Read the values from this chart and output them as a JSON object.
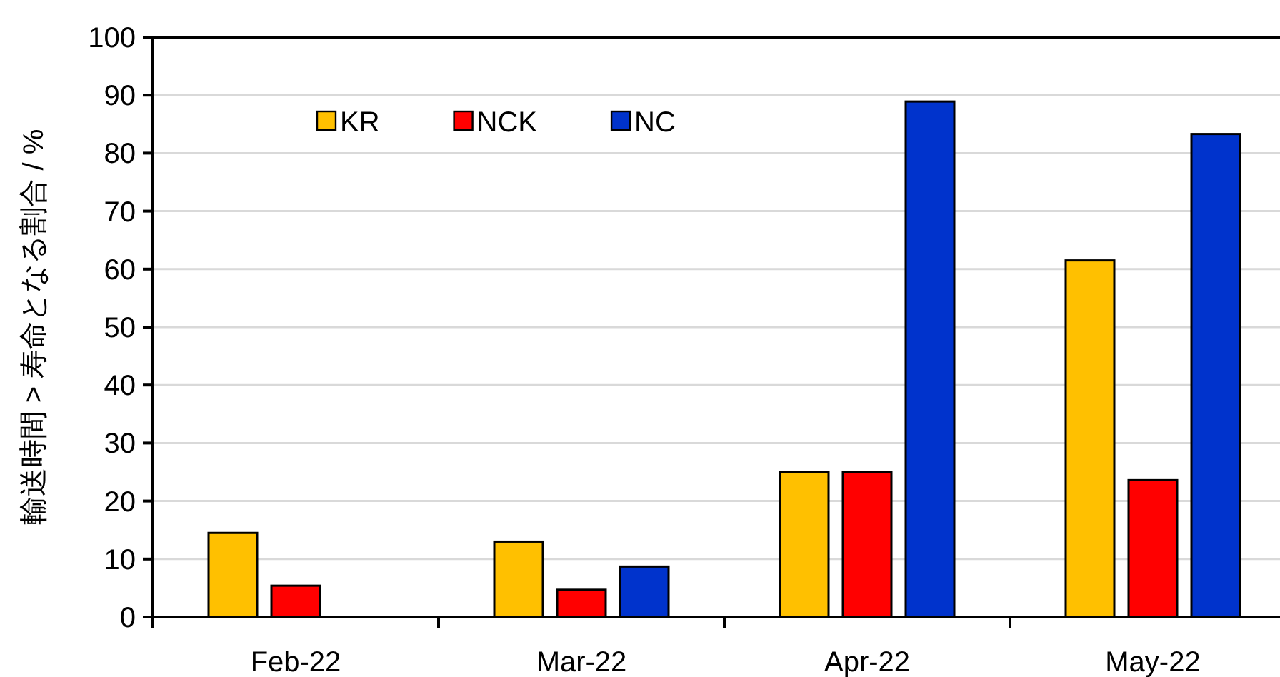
{
  "chart_data": {
    "type": "bar",
    "ylabel": "輸送時間 > 寿命となる割合 / %",
    "categories": [
      "Feb-22",
      "Mar-22",
      "Apr-22",
      "May-22"
    ],
    "series": [
      {
        "name": "KR",
        "color": "#ffc000",
        "values": [
          14.5,
          13.0,
          25.0,
          61.5
        ]
      },
      {
        "name": "NCK",
        "color": "#ff0000",
        "values": [
          5.4,
          4.7,
          25.0,
          23.6
        ]
      },
      {
        "name": "NC",
        "color": "#0033cc",
        "values": [
          null,
          8.7,
          88.9,
          83.3
        ]
      }
    ],
    "ylim": [
      0,
      100
    ],
    "yticks": [
      0,
      10,
      20,
      30,
      40,
      50,
      60,
      70,
      80,
      90,
      100
    ],
    "grid": "y",
    "legend": "top left"
  }
}
